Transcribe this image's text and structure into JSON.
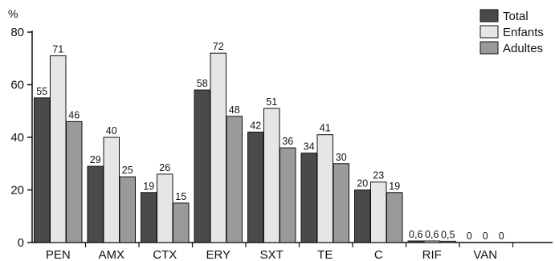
{
  "chart_data": {
    "type": "bar",
    "ylabel": "%",
    "ylim": [
      0,
      80
    ],
    "yticks": [
      0,
      20,
      40,
      60,
      80
    ],
    "grid": false,
    "legend_position": "top-right",
    "categories": [
      "PEN",
      "AMX",
      "CTX",
      "ERY",
      "SXT",
      "TE",
      "C",
      "RIF",
      "VAN"
    ],
    "series": [
      {
        "name": "Total",
        "color": "#4a4a4a",
        "values": [
          55,
          29,
          19,
          58,
          42,
          34,
          20,
          0.6,
          0
        ],
        "labels": [
          "55",
          "29",
          "19",
          "58",
          "42",
          "34",
          "20",
          "0,6",
          "0"
        ]
      },
      {
        "name": "Enfants",
        "color": "#e6e6e6",
        "values": [
          71,
          40,
          26,
          72,
          51,
          41,
          23,
          0.6,
          0
        ],
        "labels": [
          "71",
          "40",
          "26",
          "72",
          "51",
          "41",
          "23",
          "0,6",
          "0"
        ]
      },
      {
        "name": "Adultes",
        "color": "#9a9a9a",
        "values": [
          46,
          25,
          15,
          48,
          36,
          30,
          19,
          0.5,
          0
        ],
        "labels": [
          "46",
          "25",
          "15",
          "48",
          "36",
          "30",
          "19",
          "0,5",
          "0"
        ]
      }
    ]
  }
}
